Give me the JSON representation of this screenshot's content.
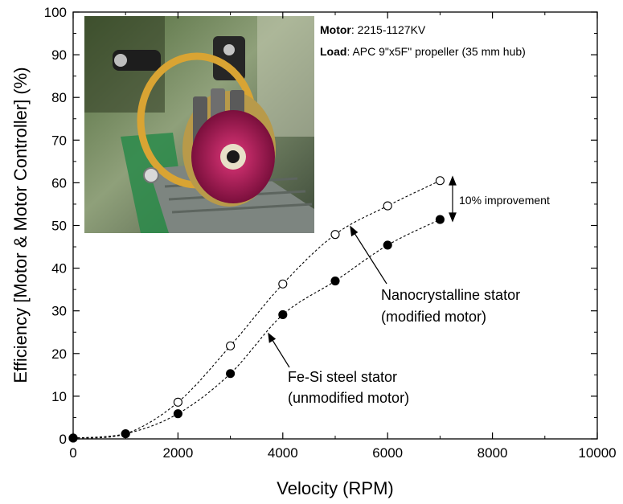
{
  "chart_data": {
    "type": "scatter",
    "xlabel": "Velocity (RPM)",
    "ylabel": "Efficiency [Motor & Motor Controller] (%)",
    "xlim": [
      0,
      10000
    ],
    "ylim": [
      0,
      100
    ],
    "xticks": [
      "0",
      "2000",
      "4000",
      "6000",
      "8000",
      "10000"
    ],
    "yticks": [
      "0",
      "10",
      "20",
      "30",
      "40",
      "50",
      "60",
      "70",
      "80",
      "90",
      "100"
    ],
    "grid": false,
    "series": [
      {
        "label": "Nanocrystalline stator (modified motor)",
        "marker": "open-circle",
        "x": [
          0,
          1000,
          2000,
          3000,
          4000,
          5000,
          6000,
          7000
        ],
        "y": [
          0.2,
          1.2,
          8.6,
          21.8,
          36.3,
          47.9,
          54.6,
          60.5
        ]
      },
      {
        "label": "Fe-Si steel stator (unmodified motor)",
        "marker": "filled-circle",
        "x": [
          0,
          1000,
          2000,
          3000,
          4000,
          5000,
          6000,
          7000
        ],
        "y": [
          0.2,
          1.2,
          5.9,
          15.3,
          29.1,
          37.0,
          45.4,
          51.4
        ]
      }
    ],
    "annotations": {
      "improvement": "10% improvement",
      "nano_line1": "Nanocrystalline stator",
      "nano_line2": "(modified motor)",
      "fesi_line1": "Fe-Si steel stator",
      "fesi_line2": "(unmodified motor)"
    },
    "info": {
      "motor_label": "Motor",
      "motor_value": ": 2215-1127KV",
      "load_label": "Load",
      "load_value": ": APC 9\"x5F\" propeller (35 mm hub)"
    },
    "colors": {
      "axis": "#000000",
      "marker": "#000000",
      "fit_line": "#000000"
    }
  }
}
